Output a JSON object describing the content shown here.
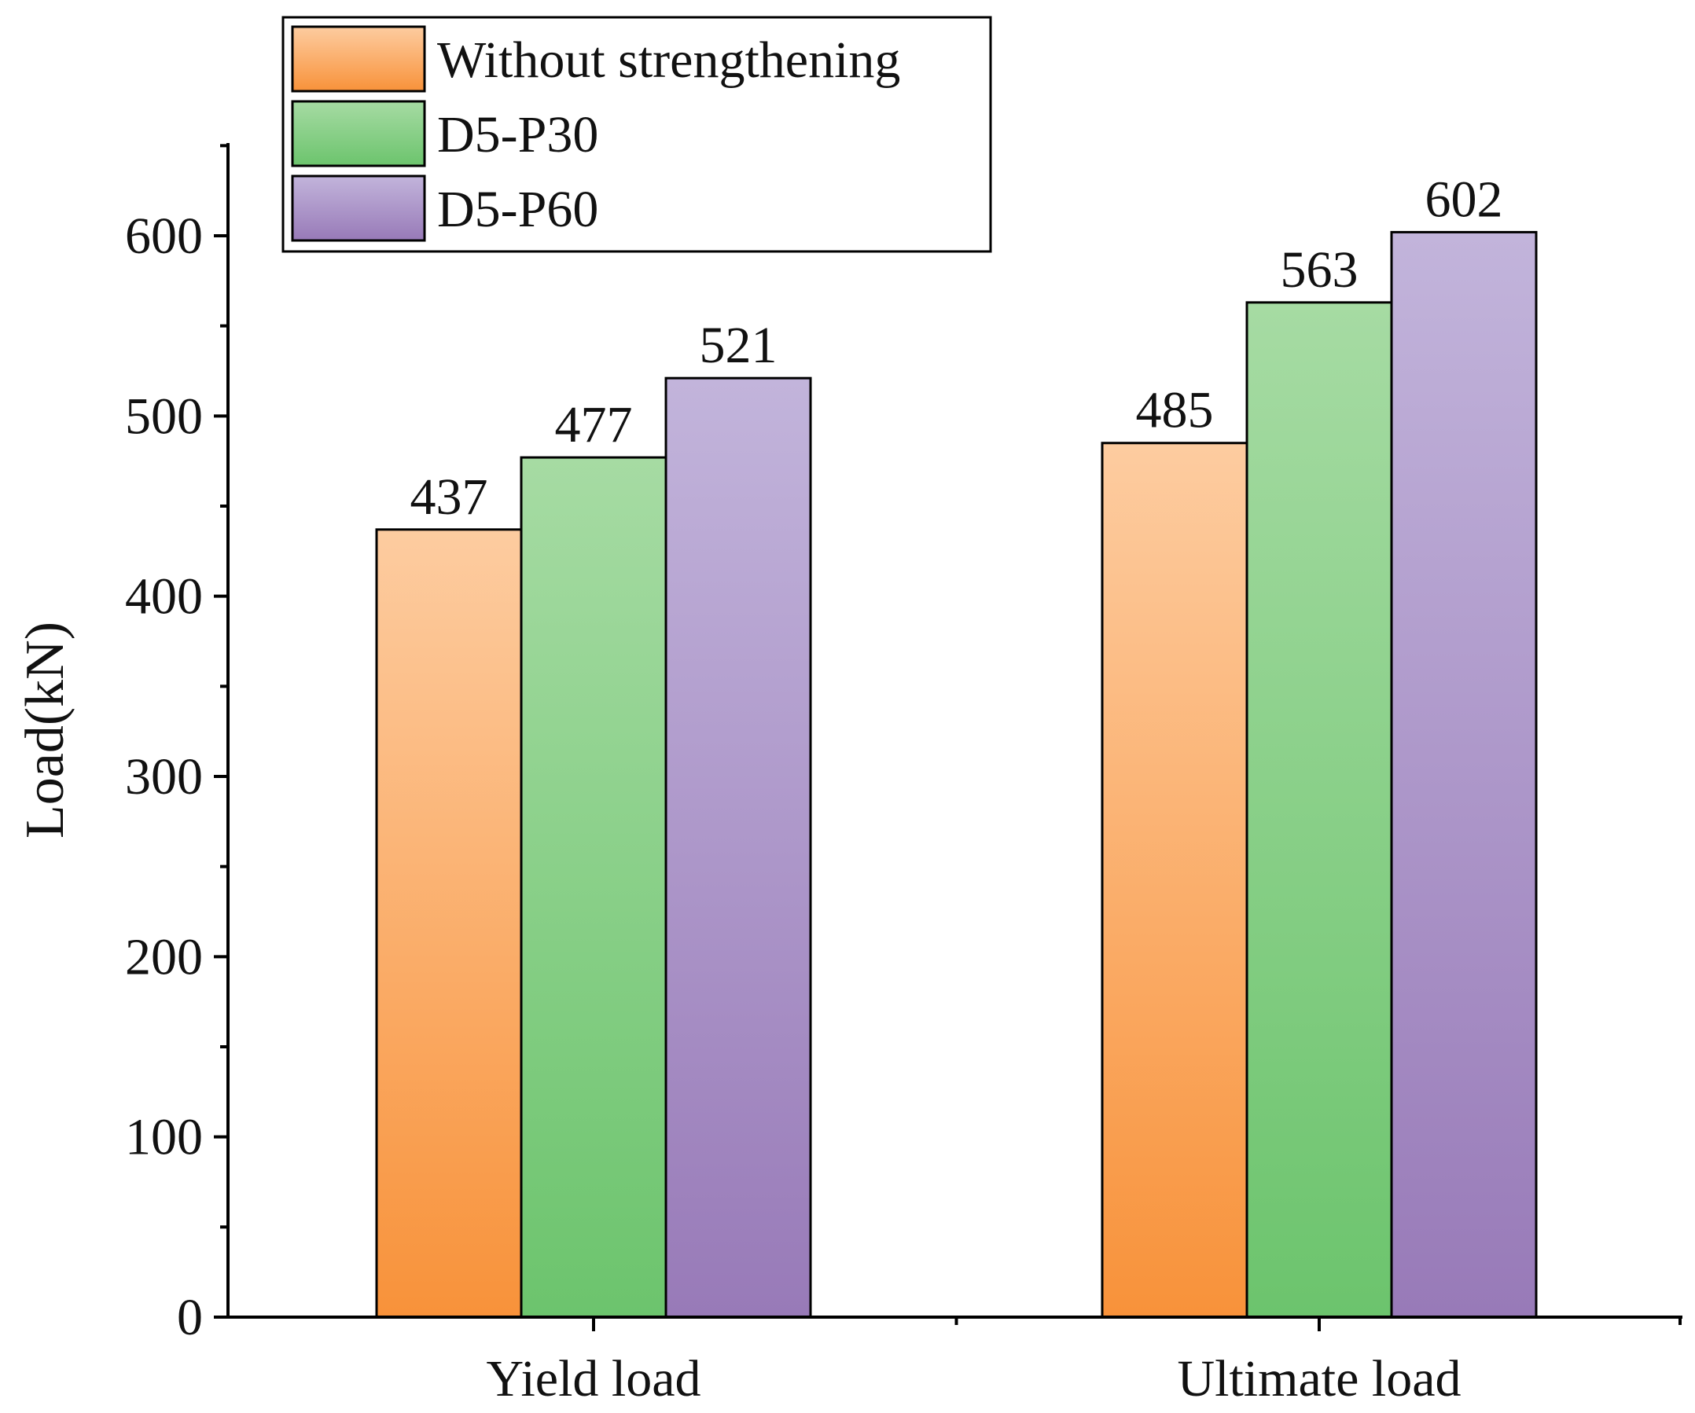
{
  "chart_data": {
    "type": "bar",
    "title": "",
    "xlabel": "",
    "ylabel": "Load(kN)",
    "ylim": [
      0,
      650
    ],
    "yticks": [
      0,
      100,
      200,
      300,
      400,
      500,
      600
    ],
    "grid": false,
    "legend_position": "top-left",
    "categories": [
      "Yield load",
      "Ultimate load"
    ],
    "series": [
      {
        "name": "Without strengthening",
        "values": [
          437,
          485
        ],
        "color_top": "#fdcca0",
        "color_bottom": "#f8923a"
      },
      {
        "name": "D5-P30",
        "values": [
          477,
          563
        ],
        "color_top": "#a6dba3",
        "color_bottom": "#6cc46d"
      },
      {
        "name": "D5-P60",
        "values": [
          521,
          602
        ],
        "color_top": "#c2b4db",
        "color_bottom": "#987ab8"
      }
    ]
  }
}
